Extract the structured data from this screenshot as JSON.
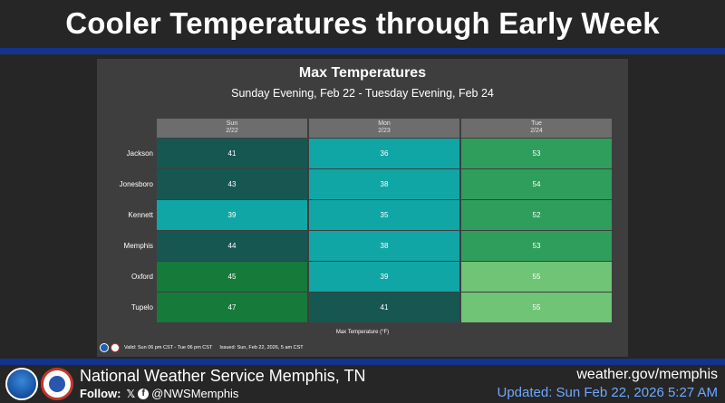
{
  "header": {
    "title": "Cooler Temperatures through Early Week"
  },
  "panel": {
    "title": "Max Temperatures",
    "subtitle": "Sunday Evening, Feb 22 - Tuesday Evening, Feb 24",
    "legend_label": "Max Temperature (°F)",
    "valid_text": "Valid: Sun 06 pm CST - Tue 06 pm CST",
    "issued_text": "Issued: Sun, Feb 22, 2026, 5 am CST"
  },
  "table": {
    "columns": [
      {
        "day": "Sun",
        "date": "2/22"
      },
      {
        "day": "Mon",
        "date": "2/23"
      },
      {
        "day": "Tue",
        "date": "2/24"
      }
    ],
    "rows": [
      {
        "city": "Jackson",
        "temps": [
          "41",
          "36",
          "53"
        ]
      },
      {
        "city": "Jonesboro",
        "temps": [
          "43",
          "38",
          "54"
        ]
      },
      {
        "city": "Kennett",
        "temps": [
          "39",
          "35",
          "52"
        ]
      },
      {
        "city": "Memphis",
        "temps": [
          "44",
          "38",
          "53"
        ]
      },
      {
        "city": "Oxford",
        "temps": [
          "45",
          "39",
          "55"
        ]
      },
      {
        "city": "Tupelo",
        "temps": [
          "47",
          "41",
          "55"
        ]
      }
    ],
    "colors": [
      [
        "#175752",
        "#10a6a6",
        "#2f9e5c"
      ],
      [
        "#175752",
        "#10a6a6",
        "#2f9e5c"
      ],
      [
        "#10a6a6",
        "#10a6a6",
        "#2f9e5c"
      ],
      [
        "#175752",
        "#10a6a6",
        "#2f9e5c"
      ],
      [
        "#157a3a",
        "#10a6a6",
        "#6fc476"
      ],
      [
        "#157a3a",
        "#175752",
        "#6fc476"
      ]
    ]
  },
  "footer": {
    "office": "National Weather Service Memphis, TN",
    "follow_label": "Follow:",
    "x_glyph": "𝕏",
    "fb_glyph": "f",
    "handle": "@NWSMemphis",
    "site": "weather.gov/memphis",
    "updated": "Updated: Sun Feb 22, 2026 5:27 AM"
  }
}
